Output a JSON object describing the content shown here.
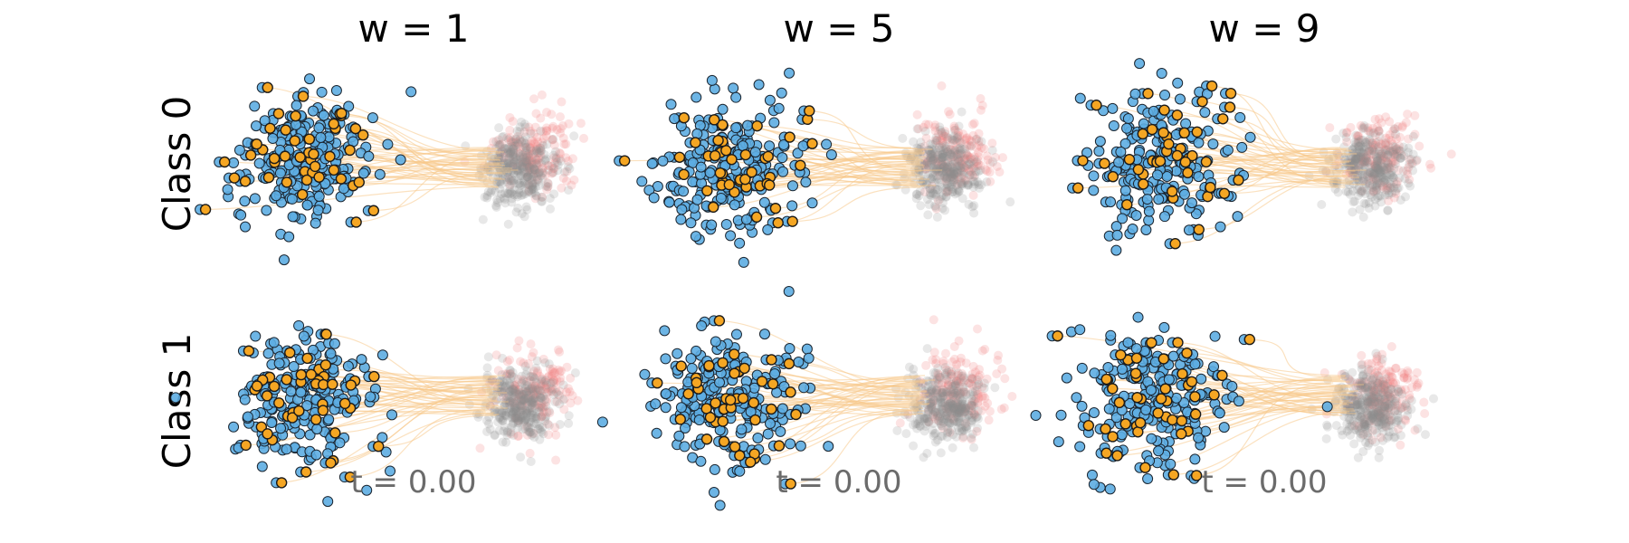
{
  "chart_data": {
    "type": "scatter",
    "column_titles": [
      "w = 1",
      "w = 5",
      "w = 9"
    ],
    "row_labels": [
      "Class 0",
      "Class 1"
    ],
    "time_labels": [
      "t = 0.00",
      "t = 0.00",
      "t = 0.00"
    ],
    "grid": false,
    "axes_visible": false,
    "colors": {
      "source": "#5dade2",
      "source_edge": "#1b2631",
      "selected": "#f5a623",
      "target": "#f28080",
      "generated": "#8a8a8a",
      "trajectory": "#f8c98a",
      "time_text": "#6b6b6b"
    },
    "source_cluster": {
      "center": [
        -3.0,
        0.0
      ],
      "spread": 1.0
    },
    "target_cluster": {
      "center": [
        3.0,
        0.0
      ],
      "spread": 0.6
    },
    "panels": [
      {
        "column": "w = 1",
        "row": "Class 0"
      },
      {
        "column": "w = 5",
        "row": "Class 0"
      },
      {
        "column": "w = 9",
        "row": "Class 0"
      },
      {
        "column": "w = 1",
        "row": "Class 1"
      },
      {
        "column": "w = 5",
        "row": "Class 1"
      },
      {
        "column": "w = 9",
        "row": "Class 1"
      }
    ]
  }
}
